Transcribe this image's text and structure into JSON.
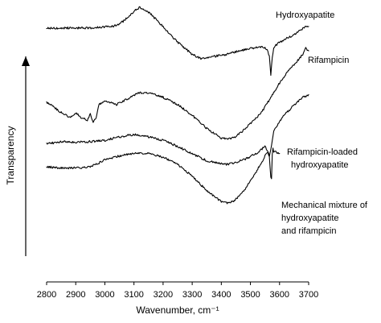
{
  "chart_data": {
    "type": "line",
    "xlabel": "Wavenumber, cm⁻¹",
    "ylabel": "Transparency",
    "xlim": [
      2800,
      3700
    ],
    "x_ticks": [
      2800,
      2900,
      3000,
      3100,
      3200,
      3300,
      3400,
      3500,
      3600,
      3700
    ],
    "ylim": [
      0,
      100
    ],
    "grid": false,
    "legend": "none",
    "series": [
      {
        "name": "Hydroxyapatite",
        "x": [
          2800,
          2900,
          2950,
          3000,
          3040,
          3060,
          3080,
          3100,
          3120,
          3140,
          3160,
          3200,
          3250,
          3300,
          3330,
          3350,
          3380,
          3420,
          3460,
          3500,
          3530,
          3550,
          3560,
          3565,
          3570,
          3575,
          3580,
          3585,
          3600,
          3630,
          3660,
          3690,
          3700
        ],
        "y": [
          91,
          91,
          91,
          91.4,
          92,
          93.5,
          95.5,
          98,
          99.5,
          98.5,
          96.5,
          91.5,
          85,
          80,
          78.2,
          78.5,
          79.2,
          80,
          81.4,
          82.5,
          83,
          82.8,
          81.5,
          79,
          71,
          79,
          82.5,
          83.5,
          85,
          87,
          89,
          91.8,
          91.5
        ]
      },
      {
        "name": "Rifampicin",
        "x": [
          2800,
          2820,
          2840,
          2860,
          2880,
          2900,
          2920,
          2940,
          2950,
          2960,
          2970,
          2980,
          3000,
          3040,
          3080,
          3120,
          3160,
          3200,
          3250,
          3300,
          3350,
          3400,
          3420,
          3440,
          3460,
          3500,
          3540,
          3560,
          3580,
          3600,
          3620,
          3640,
          3660,
          3680,
          3690,
          3700
        ],
        "y": [
          60,
          58.5,
          56.5,
          55,
          53.5,
          55.5,
          53.5,
          52.5,
          55,
          51.5,
          53.5,
          59,
          60.5,
          59,
          61.5,
          64,
          63.5,
          62,
          59,
          54.5,
          49,
          45,
          44.5,
          45,
          46.5,
          51,
          56,
          60,
          64,
          68,
          71.5,
          74.5,
          77,
          80,
          82.5,
          81.5
        ]
      },
      {
        "name": "Rifampicin-loaded hydroxyapatite",
        "x": [
          2800,
          2850,
          2900,
          2950,
          3000,
          3050,
          3100,
          3150,
          3200,
          3250,
          3300,
          3350,
          3400,
          3420,
          3440,
          3480,
          3520,
          3550,
          3560,
          3565,
          3570,
          3580,
          3600,
          3620,
          3640,
          3660,
          3680,
          3700
        ],
        "y": [
          42.5,
          43.5,
          43.2,
          43.5,
          44,
          45.5,
          46.5,
          45.5,
          44,
          41.5,
          38.5,
          35.5,
          34.2,
          34,
          34.5,
          36,
          38.5,
          41.5,
          39,
          37.5,
          40,
          48,
          52,
          55,
          57.5,
          60,
          62,
          63
        ]
      },
      {
        "name": "Mechanical mixture of hydroxyapatite and rifampicin",
        "x": [
          2800,
          2850,
          2900,
          2950,
          2980,
          3000,
          3050,
          3100,
          3150,
          3200,
          3250,
          3300,
          3350,
          3380,
          3400,
          3420,
          3440,
          3460,
          3480,
          3500,
          3520,
          3540,
          3550,
          3560,
          3565,
          3570,
          3572,
          3575,
          3578,
          3580,
          3600
        ],
        "y": [
          33,
          32.5,
          32.5,
          33,
          34.5,
          36,
          37.5,
          38.5,
          38.5,
          37,
          34,
          29,
          23,
          20,
          18.5,
          17.8,
          18.5,
          20.5,
          23.5,
          27,
          31,
          35,
          37.5,
          38.8,
          37,
          29,
          26,
          38,
          41,
          39.5,
          38.5
        ]
      }
    ]
  },
  "labels": {
    "series_1": "Hydroxyapatite",
    "series_2": "Rifampicin",
    "series_3_line1": "Rifampicin-loaded",
    "series_3_line2": "hydroxyapatite",
    "series_4_line1": "Mechanical mixture of",
    "series_4_line2": "hydroxyapatite",
    "series_4_line3": "and rifampicin"
  }
}
